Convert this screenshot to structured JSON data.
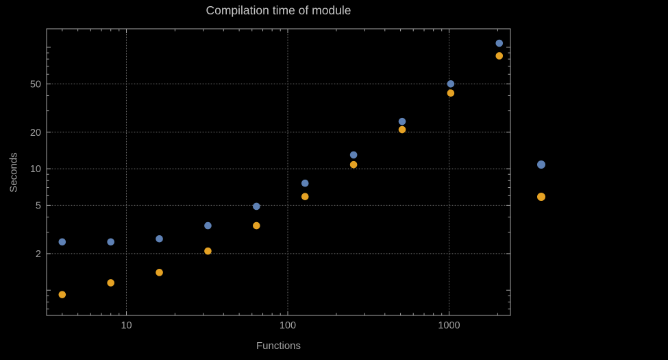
{
  "chart_data": {
    "type": "scatter",
    "title": "Compilation time of module",
    "xlabel": "Functions",
    "ylabel": "Seconds",
    "x_scale": "log",
    "y_scale": "log",
    "xlim": [
      3.2,
      2400
    ],
    "ylim": [
      0.62,
      142
    ],
    "x_ticks": [
      10,
      100,
      1000
    ],
    "y_ticks": [
      2,
      5,
      10,
      20,
      50
    ],
    "grid": "dotted",
    "x": [
      4,
      8,
      16,
      32,
      64,
      128,
      256,
      512,
      1024,
      2048
    ],
    "series": [
      {
        "name": "blue",
        "color": "#5E81B5",
        "values": [
          2.5,
          2.5,
          2.65,
          3.4,
          4.9,
          7.6,
          13,
          24.5,
          50,
          108
        ]
      },
      {
        "name": "orange",
        "color": "#E5A224",
        "values": [
          0.92,
          1.15,
          1.4,
          2.1,
          3.4,
          5.9,
          10.8,
          21,
          42,
          85
        ]
      }
    ],
    "legend": {
      "position": "right-outside",
      "markers": [
        {
          "series": "blue",
          "color": "#5E81B5"
        },
        {
          "series": "orange",
          "color": "#E5A224"
        }
      ]
    }
  },
  "colors": {
    "background": "#000000",
    "frame": "#a6a6a6",
    "grid": "#6f6f6f",
    "tick_label": "#a2a2a2",
    "title": "#c6c6c6"
  }
}
